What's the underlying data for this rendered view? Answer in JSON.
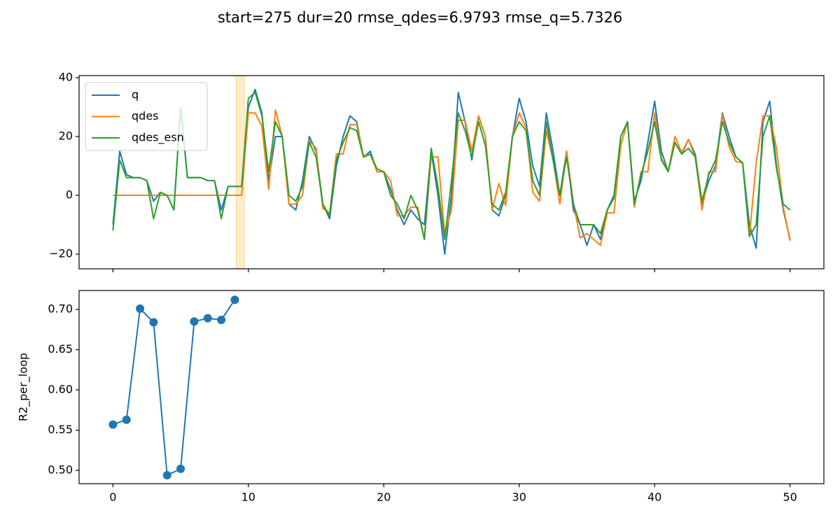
{
  "chart_data": [
    {
      "type": "line",
      "title": "start=275 dur=20 rmse_qdes=6.9793 rmse_q=5.7326",
      "x": [
        0,
        0.5,
        1,
        1.5,
        2,
        2.5,
        3,
        3.5,
        4,
        4.5,
        5,
        5.5,
        6,
        6.5,
        7,
        7.5,
        8,
        8.5,
        9,
        9.5,
        10,
        10.5,
        11,
        11.5,
        12,
        12.5,
        13,
        13.5,
        14,
        14.5,
        15,
        15.5,
        16,
        16.5,
        17,
        17.5,
        18,
        18.5,
        19,
        19.5,
        20,
        20.5,
        21,
        21.5,
        22,
        22.5,
        23,
        23.5,
        24,
        24.5,
        25,
        25.5,
        26,
        26.5,
        27,
        27.5,
        28,
        28.5,
        29,
        29.5,
        30,
        30.5,
        31,
        31.5,
        32,
        32.5,
        33,
        33.5,
        34,
        34.5,
        35,
        35.5,
        36,
        36.5,
        37,
        37.5,
        38,
        38.5,
        39,
        39.5,
        40,
        40.5,
        41,
        41.5,
        42,
        42.5,
        43,
        43.5,
        44,
        44.5,
        45,
        45.5,
        46,
        46.5,
        47,
        47.5,
        48,
        48.5,
        49,
        49.5,
        50
      ],
      "series": [
        {
          "name": "q",
          "color": "#1f77b4",
          "values": [
            -10,
            15,
            7,
            6,
            6,
            5,
            -2,
            1,
            0,
            -5,
            30,
            6,
            6,
            6,
            5,
            5,
            -5,
            3,
            3,
            3,
            30,
            36,
            28,
            5,
            20,
            20,
            -3,
            -5,
            5,
            20,
            15,
            -3,
            -8,
            10,
            20,
            27,
            25,
            13,
            15,
            8,
            8,
            2,
            -5,
            -10,
            -5,
            -8,
            -10,
            15,
            0,
            -20,
            0,
            35,
            25,
            12,
            27,
            20,
            -5,
            -7,
            0,
            20,
            33,
            25,
            10,
            3,
            28,
            15,
            0,
            15,
            -5,
            -10,
            -17,
            -10,
            -15,
            -5,
            0,
            20,
            25,
            -2,
            5,
            18,
            32,
            15,
            8,
            18,
            14,
            19,
            14,
            -3,
            5,
            10,
            28,
            20,
            13,
            11,
            -10,
            -18,
            25,
            32,
            10,
            -5,
            -15
          ]
        },
        {
          "name": "qdes",
          "color": "#ff7f0e",
          "values": [
            0,
            0,
            0,
            0,
            0,
            0,
            0,
            0,
            0,
            0,
            0,
            0,
            0,
            0,
            0,
            0,
            0,
            0,
            0,
            0,
            28,
            28,
            23.5,
            2,
            29,
            20,
            -3,
            -3,
            0,
            18.5,
            16,
            -4.5,
            -6,
            14,
            14,
            24,
            24,
            13.5,
            14,
            8,
            8,
            5,
            -7,
            -7,
            -4,
            -4,
            -15,
            13,
            13,
            -13,
            -5,
            25.5,
            25.5,
            15,
            27,
            20,
            -5,
            4,
            -3.5,
            20,
            28,
            23,
            1,
            -2,
            22,
            12,
            -3,
            15,
            -2.5,
            -14.5,
            -13,
            -15,
            -17,
            -6,
            -6,
            17,
            25,
            -4,
            8,
            8,
            28,
            12.5,
            8,
            20,
            14.5,
            19,
            13,
            -5,
            8,
            8,
            27.5,
            16.5,
            11.5,
            11,
            -14,
            11,
            27,
            27,
            16,
            -4,
            -15.5
          ]
        },
        {
          "name": "qdes_esn",
          "color": "#2ca02c",
          "values": [
            -12,
            12,
            6,
            6,
            6,
            5,
            -8,
            1,
            0,
            -5,
            30,
            6,
            6,
            6,
            5,
            5,
            -8,
            3,
            3,
            3,
            33,
            35,
            27,
            8,
            25,
            20,
            0,
            -2,
            3,
            18,
            13,
            -3,
            -7,
            12,
            18,
            23,
            22,
            13,
            14,
            9,
            8,
            0,
            -3,
            -8,
            0,
            -5,
            -15,
            16,
            3,
            -15,
            5,
            28,
            22,
            13,
            25,
            17,
            -3,
            -5,
            1,
            20,
            25,
            22,
            5,
            0,
            25,
            12,
            0,
            13,
            -3,
            -10,
            -10,
            -10,
            -13,
            -5,
            -1,
            20,
            25,
            -3,
            7,
            15,
            25,
            12,
            8,
            18,
            14,
            16,
            13,
            -2,
            7,
            12,
            25,
            18,
            13,
            11,
            -14,
            -10,
            20,
            27,
            9,
            -3,
            -5
          ]
        }
      ],
      "span": [
        9.1,
        9.7
      ],
      "span_color": "#ffa500",
      "xlim": [
        -2.5,
        52.5
      ],
      "xticks": [
        0,
        10,
        20,
        30,
        40,
        50
      ],
      "xtick_labels": false,
      "ylim": [
        -25,
        40.7
      ],
      "yticks": [
        {
          "value": -20,
          "label": "−20"
        },
        0,
        20,
        40
      ],
      "legend": "upper left"
    },
    {
      "type": "line",
      "marker": "o",
      "x": [
        0,
        1,
        2,
        3,
        4,
        5,
        6,
        7,
        8,
        9
      ],
      "series": [
        {
          "color": "#1f77b4",
          "values": [
            0.557,
            0.563,
            0.701,
            0.684,
            0.494,
            0.502,
            0.685,
            0.689,
            0.687,
            0.712
          ]
        }
      ],
      "ylabel": "R2_per_loop",
      "xlim": [
        -2.5,
        52.5
      ],
      "xticks": [
        0,
        10,
        20,
        30,
        40,
        50
      ],
      "xtick_labels": true,
      "ylim": [
        0.4835,
        0.7235
      ],
      "yticks": [
        {
          "value": 0.5,
          "label": "0.50"
        },
        0.55,
        {
          "value": 0.6,
          "label": "0.60"
        },
        0.65,
        {
          "value": 0.7,
          "label": "0.70"
        }
      ]
    }
  ]
}
